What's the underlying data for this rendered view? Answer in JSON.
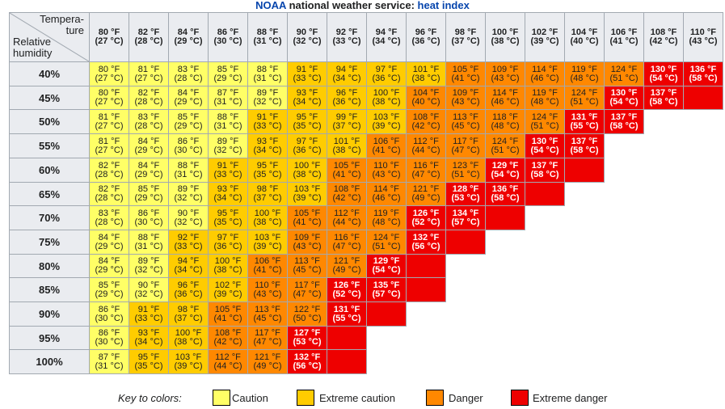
{
  "header": {
    "title_org": "NOAA",
    "title_mid": " national weather service: ",
    "title_topic": "heat index"
  },
  "corner": {
    "temp_label_1": "Tempera-",
    "temp_label_2": "ture",
    "rh_label_1": "Relative",
    "rh_label_2": "humidity"
  },
  "colors": {
    "caution": "#ffff66",
    "extreme_caution": "#ffcc00",
    "danger": "#ff8800",
    "extreme_danger": "#ee0000",
    "header_bg": "#eaecf0",
    "border": "#a2a9b1"
  },
  "chart_data": {
    "type": "table",
    "title": "NOAA national weather service: heat index",
    "columns": [
      {
        "f": "80 °F",
        "c": "(27 °C)"
      },
      {
        "f": "82 °F",
        "c": "(28 °C)"
      },
      {
        "f": "84 °F",
        "c": "(29 °C)"
      },
      {
        "f": "86 °F",
        "c": "(30 °C)"
      },
      {
        "f": "88 °F",
        "c": "(31 °C)"
      },
      {
        "f": "90 °F",
        "c": "(32 °C)"
      },
      {
        "f": "92 °F",
        "c": "(33 °C)"
      },
      {
        "f": "94 °F",
        "c": "(34 °C)"
      },
      {
        "f": "96 °F",
        "c": "(36 °C)"
      },
      {
        "f": "98 °F",
        "c": "(37 °C)"
      },
      {
        "f": "100 °F",
        "c": "(38 °C)"
      },
      {
        "f": "102 °F",
        "c": "(39 °C)"
      },
      {
        "f": "104 °F",
        "c": "(40 °C)"
      },
      {
        "f": "106 °F",
        "c": "(41 °C)"
      },
      {
        "f": "108 °F",
        "c": "(42 °C)"
      },
      {
        "f": "110 °F",
        "c": "(43 °C)"
      }
    ],
    "rows": [
      {
        "rh": "40%",
        "cells": [
          [
            "80 °F",
            "(27 °C)",
            "c"
          ],
          [
            "81 °F",
            "(27 °C)",
            "c"
          ],
          [
            "83 °F",
            "(28 °C)",
            "c"
          ],
          [
            "85 °F",
            "(29 °C)",
            "c"
          ],
          [
            "88 °F",
            "(31 °C)",
            "c"
          ],
          [
            "91 °F",
            "(33 °C)",
            "e"
          ],
          [
            "94 °F",
            "(34 °C)",
            "e"
          ],
          [
            "97 °F",
            "(36 °C)",
            "e"
          ],
          [
            "101 °F",
            "(38 °C)",
            "e"
          ],
          [
            "105 °F",
            "(41 °C)",
            "d"
          ],
          [
            "109 °F",
            "(43 °C)",
            "d"
          ],
          [
            "114 °F",
            "(46 °C)",
            "d"
          ],
          [
            "119 °F",
            "(48 °C)",
            "d"
          ],
          [
            "124 °F",
            "(51 °C)",
            "d"
          ],
          [
            "130 °F",
            "(54 °C)",
            "x"
          ],
          [
            "136 °F",
            "(58 °C)",
            "x"
          ]
        ]
      },
      {
        "rh": "45%",
        "cells": [
          [
            "80 °F",
            "(27 °C)",
            "c"
          ],
          [
            "82 °F",
            "(28 °C)",
            "c"
          ],
          [
            "84 °F",
            "(29 °C)",
            "c"
          ],
          [
            "87 °F",
            "(31 °C)",
            "c"
          ],
          [
            "89 °F",
            "(32 °C)",
            "c"
          ],
          [
            "93 °F",
            "(34 °C)",
            "e"
          ],
          [
            "96 °F",
            "(36 °C)",
            "e"
          ],
          [
            "100 °F",
            "(38 °C)",
            "e"
          ],
          [
            "104 °F",
            "(40 °C)",
            "d"
          ],
          [
            "109 °F",
            "(43 °C)",
            "d"
          ],
          [
            "114 °F",
            "(46 °C)",
            "d"
          ],
          [
            "119 °F",
            "(48 °C)",
            "d"
          ],
          [
            "124 °F",
            "(51 °C)",
            "d"
          ],
          [
            "130 °F",
            "(54 °C)",
            "x"
          ],
          [
            "137 °F",
            "(58 °C)",
            "x"
          ],
          [
            "",
            "",
            "x"
          ]
        ]
      },
      {
        "rh": "50%",
        "cells": [
          [
            "81 °F",
            "(27 °C)",
            "c"
          ],
          [
            "83 °F",
            "(28 °C)",
            "c"
          ],
          [
            "85 °F",
            "(29 °C)",
            "c"
          ],
          [
            "88 °F",
            "(31 °C)",
            "c"
          ],
          [
            "91 °F",
            "(33 °C)",
            "e"
          ],
          [
            "95 °F",
            "(35 °C)",
            "e"
          ],
          [
            "99 °F",
            "(37 °C)",
            "e"
          ],
          [
            "103 °F",
            "(39 °C)",
            "e"
          ],
          [
            "108 °F",
            "(42 °C)",
            "d"
          ],
          [
            "113 °F",
            "(45 °C)",
            "d"
          ],
          [
            "118 °F",
            "(48 °C)",
            "d"
          ],
          [
            "124 °F",
            "(51 °C)",
            "d"
          ],
          [
            "131 °F",
            "(55 °C)",
            "x"
          ],
          [
            "137 °F",
            "(58 °C)",
            "x"
          ]
        ]
      },
      {
        "rh": "55%",
        "cells": [
          [
            "81 °F",
            "(27 °C)",
            "c"
          ],
          [
            "84 °F",
            "(29 °C)",
            "c"
          ],
          [
            "86 °F",
            "(30 °C)",
            "c"
          ],
          [
            "89 °F",
            "(32 °C)",
            "c"
          ],
          [
            "93 °F",
            "(34 °C)",
            "e"
          ],
          [
            "97 °F",
            "(36 °C)",
            "e"
          ],
          [
            "101 °F",
            "(38 °C)",
            "e"
          ],
          [
            "106 °F",
            "(41 °C)",
            "d"
          ],
          [
            "112 °F",
            "(44 °C)",
            "d"
          ],
          [
            "117 °F",
            "(47 °C)",
            "d"
          ],
          [
            "124 °F",
            "(51 °C)",
            "d"
          ],
          [
            "130 °F",
            "(54 °C)",
            "x"
          ],
          [
            "137 °F",
            "(58 °C)",
            "x"
          ]
        ]
      },
      {
        "rh": "60%",
        "cells": [
          [
            "82 °F",
            "(28 °C)",
            "c"
          ],
          [
            "84 °F",
            "(29 °C)",
            "c"
          ],
          [
            "88 °F",
            "(31 °C)",
            "c"
          ],
          [
            "91 °F",
            "(33 °C)",
            "e"
          ],
          [
            "95 °F",
            "(35 °C)",
            "e"
          ],
          [
            "100 °F",
            "(38 °C)",
            "e"
          ],
          [
            "105 °F",
            "(41 °C)",
            "d"
          ],
          [
            "110 °F",
            "(43 °C)",
            "d"
          ],
          [
            "116 °F",
            "(47 °C)",
            "d"
          ],
          [
            "123 °F",
            "(51 °C)",
            "d"
          ],
          [
            "129 °F",
            "(54 °C)",
            "x"
          ],
          [
            "137 °F",
            "(58 °C)",
            "x"
          ],
          [
            "",
            "",
            "x"
          ]
        ]
      },
      {
        "rh": "65%",
        "cells": [
          [
            "82 °F",
            "(28 °C)",
            "c"
          ],
          [
            "85 °F",
            "(29 °C)",
            "c"
          ],
          [
            "89 °F",
            "(32 °C)",
            "c"
          ],
          [
            "93 °F",
            "(34 °C)",
            "e"
          ],
          [
            "98 °F",
            "(37 °C)",
            "e"
          ],
          [
            "103 °F",
            "(39 °C)",
            "e"
          ],
          [
            "108 °F",
            "(42 °C)",
            "d"
          ],
          [
            "114 °F",
            "(46 °C)",
            "d"
          ],
          [
            "121 °F",
            "(49 °C)",
            "d"
          ],
          [
            "128 °F",
            "(53 °C)",
            "x"
          ],
          [
            "136 °F",
            "(58 °C)",
            "x"
          ],
          [
            "",
            "",
            "x"
          ]
        ]
      },
      {
        "rh": "70%",
        "cells": [
          [
            "83 °F",
            "(28 °C)",
            "c"
          ],
          [
            "86 °F",
            "(30 °C)",
            "c"
          ],
          [
            "90 °F",
            "(32 °C)",
            "c"
          ],
          [
            "95 °F",
            "(35 °C)",
            "e"
          ],
          [
            "100 °F",
            "(38 °C)",
            "e"
          ],
          [
            "105 °F",
            "(41 °C)",
            "d"
          ],
          [
            "112 °F",
            "(44 °C)",
            "d"
          ],
          [
            "119 °F",
            "(48 °C)",
            "d"
          ],
          [
            "126 °F",
            "(52 °C)",
            "x"
          ],
          [
            "134 °F",
            "(57 °C)",
            "x"
          ],
          [
            "",
            "",
            "x"
          ]
        ]
      },
      {
        "rh": "75%",
        "cells": [
          [
            "84 °F",
            "(29 °C)",
            "c"
          ],
          [
            "88 °F",
            "(31 °C)",
            "c"
          ],
          [
            "92 °F",
            "(33 °C)",
            "e"
          ],
          [
            "97 °F",
            "(36 °C)",
            "e"
          ],
          [
            "103 °F",
            "(39 °C)",
            "e"
          ],
          [
            "109 °F",
            "(43 °C)",
            "d"
          ],
          [
            "116 °F",
            "(47 °C)",
            "d"
          ],
          [
            "124 °F",
            "(51 °C)",
            "d"
          ],
          [
            "132 °F",
            "(56 °C)",
            "x"
          ],
          [
            "",
            "",
            "x"
          ]
        ]
      },
      {
        "rh": "80%",
        "cells": [
          [
            "84 °F",
            "(29 °C)",
            "c"
          ],
          [
            "89 °F",
            "(32 °C)",
            "c"
          ],
          [
            "94 °F",
            "(34 °C)",
            "e"
          ],
          [
            "100 °F",
            "(38 °C)",
            "e"
          ],
          [
            "106 °F",
            "(41 °C)",
            "d"
          ],
          [
            "113 °F",
            "(45 °C)",
            "d"
          ],
          [
            "121 °F",
            "(49 °C)",
            "d"
          ],
          [
            "129 °F",
            "(54 °C)",
            "x"
          ],
          [
            "",
            "",
            "x"
          ]
        ]
      },
      {
        "rh": "85%",
        "cells": [
          [
            "85 °F",
            "(29 °C)",
            "c"
          ],
          [
            "90 °F",
            "(32 °C)",
            "c"
          ],
          [
            "96 °F",
            "(36 °C)",
            "e"
          ],
          [
            "102 °F",
            "(39 °C)",
            "e"
          ],
          [
            "110 °F",
            "(43 °C)",
            "d"
          ],
          [
            "117 °F",
            "(47 °C)",
            "d"
          ],
          [
            "126 °F",
            "(52 °C)",
            "x"
          ],
          [
            "135 °F",
            "(57 °C)",
            "x"
          ],
          [
            "",
            "",
            "x"
          ]
        ]
      },
      {
        "rh": "90%",
        "cells": [
          [
            "86 °F",
            "(30 °C)",
            "c"
          ],
          [
            "91 °F",
            "(33 °C)",
            "e"
          ],
          [
            "98 °F",
            "(37 °C)",
            "e"
          ],
          [
            "105 °F",
            "(41 °C)",
            "d"
          ],
          [
            "113 °F",
            "(45 °C)",
            "d"
          ],
          [
            "122 °F",
            "(50 °C)",
            "d"
          ],
          [
            "131 °F",
            "(55 °C)",
            "x"
          ],
          [
            "",
            "",
            "x"
          ]
        ]
      },
      {
        "rh": "95%",
        "cells": [
          [
            "86 °F",
            "(30 °C)",
            "c"
          ],
          [
            "93 °F",
            "(34 °C)",
            "e"
          ],
          [
            "100 °F",
            "(38 °C)",
            "e"
          ],
          [
            "108 °F",
            "(42 °C)",
            "d"
          ],
          [
            "117 °F",
            "(47 °C)",
            "d"
          ],
          [
            "127 °F",
            "(53 °C)",
            "x"
          ],
          [
            "",
            "",
            "x"
          ]
        ]
      },
      {
        "rh": "100%",
        "cells": [
          [
            "87 °F",
            "(31 °C)",
            "c"
          ],
          [
            "95 °F",
            "(35 °C)",
            "e"
          ],
          [
            "103 °F",
            "(39 °C)",
            "e"
          ],
          [
            "112 °F",
            "(44 °C)",
            "d"
          ],
          [
            "121 °F",
            "(49 °C)",
            "d"
          ],
          [
            "132 °F",
            "(56 °C)",
            "x"
          ],
          [
            "",
            "",
            "x"
          ]
        ]
      }
    ],
    "legend": {
      "title": "Key to colors:",
      "items": [
        {
          "key": "c",
          "label": "Caution"
        },
        {
          "key": "e",
          "label": "Extreme caution"
        },
        {
          "key": "d",
          "label": "Danger"
        },
        {
          "key": "x",
          "label": "Extreme danger"
        }
      ]
    }
  }
}
